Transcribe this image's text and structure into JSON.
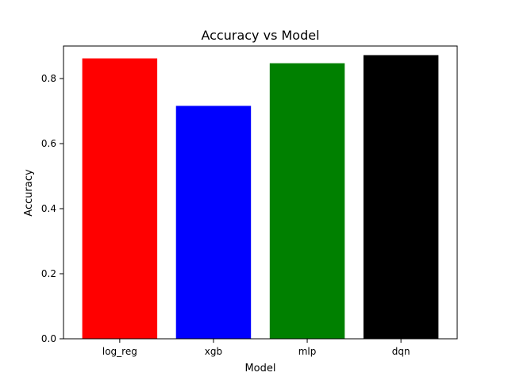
{
  "chart_data": {
    "type": "bar",
    "title": "Accuracy vs Model",
    "xlabel": "Model",
    "ylabel": "Accuracy",
    "categories": [
      "log_reg",
      "xgb",
      "mlp",
      "dqn"
    ],
    "values": [
      0.862,
      0.716,
      0.847,
      0.872
    ],
    "colors": [
      "#ff0000",
      "#0000ff",
      "#008000",
      "#000000"
    ],
    "ylim": [
      0,
      0.9
    ],
    "yticks": [
      0.0,
      0.2,
      0.4,
      0.6,
      0.8
    ],
    "ytick_labels": [
      "0.0",
      "0.2",
      "0.4",
      "0.6",
      "0.8"
    ],
    "grid": false,
    "legend": "none"
  }
}
